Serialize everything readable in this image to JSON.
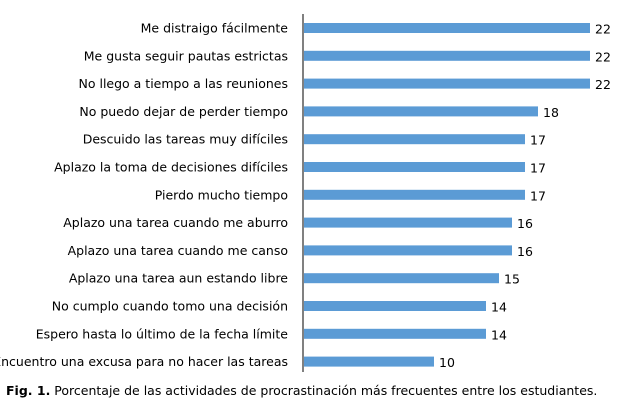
{
  "chart_data": {
    "type": "bar",
    "orientation": "horizontal",
    "categories": [
      "Me distraigo fácilmente",
      "Me gusta seguir pautas estrictas",
      "No llego a tiempo a las reuniones",
      "No puedo dejar de perder tiempo",
      "Descuido las tareas muy difíciles",
      "Aplazo la toma de decisiones difíciles",
      "Pierdo mucho tiempo",
      "Aplazo una tarea cuando me aburro",
      "Aplazo una tarea cuando me canso",
      "Aplazo una tarea aun estando libre",
      "No cumplo cuando tomo una decisión",
      "Espero hasta lo último de la fecha límite",
      "Encuentro una excusa para no hacer las tareas"
    ],
    "values": [
      22,
      22,
      22,
      18,
      17,
      17,
      17,
      16,
      16,
      15,
      14,
      14,
      10
    ],
    "data_labels": [
      "22",
      "22",
      "22",
      "18",
      "17",
      "17",
      "17",
      "16",
      "16",
      "15",
      "14",
      "14",
      "10"
    ],
    "xlim": [
      0,
      22
    ],
    "bar_color": "#5b9bd5",
    "axis_color": "#000000",
    "grid": false,
    "legend": "none"
  },
  "caption": {
    "number": "Fig. 1.",
    "text": " Porcentaje de las actividades de procrastinación más frecuentes entre los estudiantes."
  }
}
